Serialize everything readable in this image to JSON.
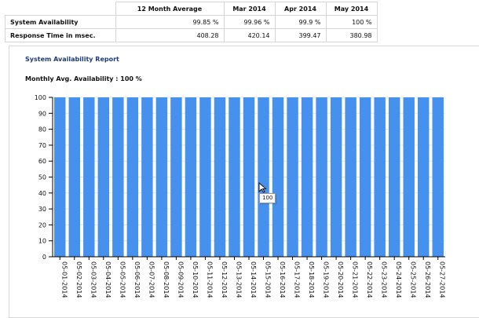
{
  "summary": {
    "headers": [
      "12 Month Average",
      "Mar 2014",
      "Apr 2014",
      "May 2014"
    ],
    "rows": [
      {
        "label": "System Availability",
        "values": [
          "99.85 %",
          "99.96 %",
          "99.9 %",
          "100 %"
        ]
      },
      {
        "label": "Response Time in msec.",
        "values": [
          "408.28",
          "420.14",
          "399.47",
          "380.98"
        ]
      }
    ]
  },
  "report": {
    "title": "System Availability Report",
    "monthly_avg": "Monthly Avg. Availability : 100 %"
  },
  "tooltip": {
    "text": "100"
  },
  "colors": {
    "bar": "#4691ee",
    "title": "#1f3b78"
  },
  "chart_data": {
    "type": "bar",
    "title": "",
    "xlabel": "",
    "ylabel": "",
    "ylim": [
      0,
      100
    ],
    "yticks": [
      0,
      10,
      20,
      30,
      40,
      50,
      60,
      70,
      80,
      90,
      100
    ],
    "grid": true,
    "categories": [
      "05-01-2014",
      "05-02-2014",
      "05-03-2014",
      "05-04-2014",
      "05-05-2014",
      "05-06-2014",
      "05-07-2014",
      "05-08-2014",
      "05-09-2014",
      "05-10-2014",
      "05-11-2014",
      "05-12-2014",
      "05-13-2014",
      "05-14-2014",
      "05-15-2014",
      "05-16-2014",
      "05-17-2014",
      "05-18-2014",
      "05-19-2014",
      "05-20-2014",
      "05-21-2014",
      "05-22-2014",
      "05-23-2014",
      "05-24-2014",
      "05-25-2014",
      "05-26-2014",
      "05-27-2014"
    ],
    "values": [
      100,
      100,
      100,
      100,
      100,
      100,
      100,
      100,
      100,
      100,
      100,
      100,
      100,
      100,
      100,
      100,
      100,
      100,
      100,
      100,
      100,
      100,
      100,
      100,
      100,
      100,
      100
    ]
  }
}
